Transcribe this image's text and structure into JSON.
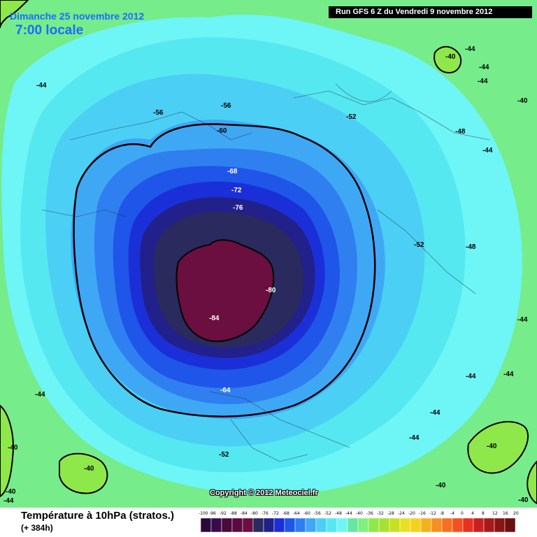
{
  "header": {
    "date_line": "Dimanche 25 novembre 2012",
    "time_line": "7:00 locale",
    "run_banner": "Run GFS 6 Z du Vendredi 9 novembre 2012"
  },
  "copyright": "Copyright © 2012 Meteociel.fr",
  "footer": {
    "title": "Température à 10hPa (stratos.)",
    "subtitle": "(+ 384h)"
  },
  "colors": {
    "green_outer": "#7ff07f",
    "green_mid": "#66e6a0",
    "cyan_light": "#6ef5f5",
    "cyan": "#55e8f0",
    "sky": "#4ccff5",
    "blue_light": "#3fa8f5",
    "blue_mid": "#2f7ff0",
    "blue": "#1f55e8",
    "blue_deep": "#1a2fd8",
    "navy": "#22208a",
    "slate": "#2a2a5e",
    "maroon": "#6a0f3f"
  },
  "scale": {
    "labels": [
      "-100",
      "-96",
      "-92",
      "-88",
      "-84",
      "-80",
      "-76",
      "-72",
      "-68",
      "-64",
      "-60",
      "-56",
      "-52",
      "-48",
      "-44",
      "-40",
      "-36",
      "-32",
      "-28",
      "-24",
      "-20",
      "-16",
      "-12",
      "-8",
      "-4",
      "0",
      "4",
      "8",
      "12",
      "16",
      "20"
    ],
    "colors": [
      "#2a0a3a",
      "#3a0a4a",
      "#4a0a3a",
      "#5a0a40",
      "#6a0f3f",
      "#2a2a5e",
      "#22208a",
      "#1a2fd8",
      "#1f55e8",
      "#2f7ff0",
      "#3fa8f5",
      "#4ccff5",
      "#55e8f0",
      "#6ef5f5",
      "#66e6a0",
      "#7ff07f",
      "#8fe84a",
      "#a8e030",
      "#c8e020",
      "#e8e020",
      "#f5d020",
      "#f5b020",
      "#f59020",
      "#f57020",
      "#f55020",
      "#e83020",
      "#c82020",
      "#a81a1a",
      "#8a1515",
      "#6a1010"
    ]
  },
  "contour_labels": [
    {
      "text": "-44"
    },
    {
      "text": "-56"
    },
    {
      "text": "-56"
    },
    {
      "text": "-60"
    },
    {
      "text": "-52"
    },
    {
      "text": "-48"
    },
    {
      "text": "-44"
    },
    {
      "text": "-40"
    },
    {
      "text": "-44"
    },
    {
      "text": "-44"
    },
    {
      "text": "-40"
    },
    {
      "text": "-44"
    },
    {
      "text": "-68"
    },
    {
      "text": "-72"
    },
    {
      "text": "-76"
    },
    {
      "text": "-52"
    },
    {
      "text": "-48"
    },
    {
      "text": "-80"
    },
    {
      "text": "-84"
    },
    {
      "text": "-44"
    },
    {
      "text": "-44"
    },
    {
      "text": "-44"
    },
    {
      "text": "-64"
    },
    {
      "text": "-44"
    },
    {
      "text": "-44"
    },
    {
      "text": "-44"
    },
    {
      "text": "-40"
    },
    {
      "text": "-52"
    },
    {
      "text": "-40"
    },
    {
      "text": "-40"
    },
    {
      "text": "-40"
    },
    {
      "text": "-40"
    },
    {
      "text": "-44"
    },
    {
      "text": "-40"
    }
  ]
}
